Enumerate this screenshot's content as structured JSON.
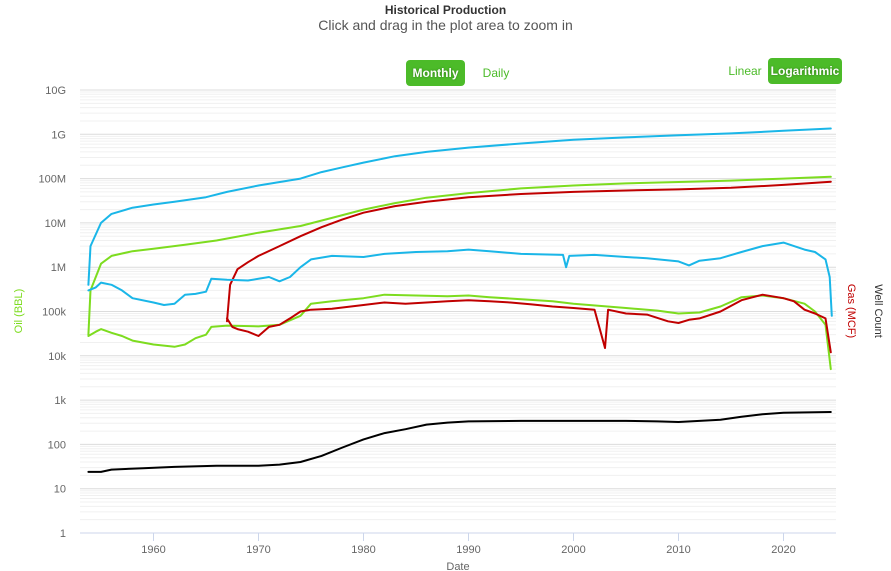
{
  "header": {
    "title": "Historical Production",
    "subtitle": "Click and drag in the plot area to zoom in"
  },
  "controls": {
    "monthly_label": "Monthly",
    "daily_label": "Daily",
    "linear_label": "Linear",
    "logarithmic_label": "Logarithmic",
    "accent_color": "#4cbb29"
  },
  "chart_data": {
    "type": "line",
    "title": "Historical Production",
    "subtitle": "Click and drag in the plot area to zoom in",
    "xlabel": "Date",
    "ylabel_left": "Oil (BBL)",
    "ylabel_right_1": "Gas (MCF)",
    "ylabel_right_2": "Well Count",
    "y_scale": "log",
    "ylim": [
      1,
      10000000000
    ],
    "xlim": [
      1953,
      2025
    ],
    "x_ticks": [
      1960,
      1970,
      1980,
      1990,
      2000,
      2010,
      2020
    ],
    "y_ticks": [
      {
        "value": 1,
        "label": "1"
      },
      {
        "value": 10,
        "label": "10"
      },
      {
        "value": 100,
        "label": "100"
      },
      {
        "value": 1000,
        "label": "1k"
      },
      {
        "value": 10000,
        "label": "10k"
      },
      {
        "value": 100000,
        "label": "100k"
      },
      {
        "value": 1000000,
        "label": "1M"
      },
      {
        "value": 10000000,
        "label": "10M"
      },
      {
        "value": 100000000,
        "label": "100M"
      },
      {
        "value": 1000000000,
        "label": "1G"
      },
      {
        "value": 10000000000,
        "label": "10G"
      }
    ],
    "grid": true,
    "series": [
      {
        "key": "cum_water",
        "color": "#1ab6e8",
        "points": [
          [
            1953.8,
            400000
          ],
          [
            1954,
            3000000
          ],
          [
            1955,
            10000000
          ],
          [
            1956,
            16000000
          ],
          [
            1958,
            22000000
          ],
          [
            1960,
            26000000
          ],
          [
            1962,
            30000000
          ],
          [
            1965,
            38000000
          ],
          [
            1967,
            50000000
          ],
          [
            1970,
            70000000
          ],
          [
            1974,
            100000000
          ],
          [
            1976,
            140000000
          ],
          [
            1978,
            180000000
          ],
          [
            1980,
            230000000
          ],
          [
            1983,
            320000000
          ],
          [
            1986,
            400000000
          ],
          [
            1990,
            500000000
          ],
          [
            1995,
            620000000
          ],
          [
            2000,
            750000000
          ],
          [
            2005,
            850000000
          ],
          [
            2010,
            950000000
          ],
          [
            2015,
            1050000000
          ],
          [
            2020,
            1200000000
          ],
          [
            2024.5,
            1350000000
          ]
        ]
      },
      {
        "key": "cum_oil",
        "color": "#7ddc1f",
        "points": [
          [
            1953.8,
            30000
          ],
          [
            1954,
            300000
          ],
          [
            1955,
            1200000
          ],
          [
            1956,
            1800000
          ],
          [
            1958,
            2300000
          ],
          [
            1960,
            2600000
          ],
          [
            1963,
            3200000
          ],
          [
            1966,
            4000000
          ],
          [
            1970,
            6000000
          ],
          [
            1974,
            8500000
          ],
          [
            1977,
            13000000
          ],
          [
            1980,
            20000000
          ],
          [
            1983,
            28000000
          ],
          [
            1986,
            37000000
          ],
          [
            1990,
            47000000
          ],
          [
            1995,
            60000000
          ],
          [
            2000,
            70000000
          ],
          [
            2005,
            78000000
          ],
          [
            2010,
            84000000
          ],
          [
            2015,
            90000000
          ],
          [
            2020,
            100000000
          ],
          [
            2024.5,
            110000000
          ]
        ]
      },
      {
        "key": "cum_gas",
        "color": "#c00000",
        "points": [
          [
            1967,
            60000
          ],
          [
            1967.3,
            400000
          ],
          [
            1968,
            900000
          ],
          [
            1969,
            1300000
          ],
          [
            1970,
            1800000
          ],
          [
            1972,
            3000000
          ],
          [
            1974,
            5000000
          ],
          [
            1976,
            8000000
          ],
          [
            1978,
            12000000
          ],
          [
            1980,
            17000000
          ],
          [
            1983,
            24000000
          ],
          [
            1986,
            30000000
          ],
          [
            1990,
            38000000
          ],
          [
            1995,
            45000000
          ],
          [
            2000,
            50000000
          ],
          [
            2005,
            54000000
          ],
          [
            2010,
            57000000
          ],
          [
            2015,
            62000000
          ],
          [
            2020,
            72000000
          ],
          [
            2024.5,
            85000000
          ]
        ]
      },
      {
        "key": "water_rate",
        "color": "#1ab6e8",
        "points": [
          [
            1953.8,
            300000
          ],
          [
            1954.5,
            350000
          ],
          [
            1955,
            450000
          ],
          [
            1956,
            400000
          ],
          [
            1957,
            300000
          ],
          [
            1958,
            200000
          ],
          [
            1960,
            160000
          ],
          [
            1961,
            140000
          ],
          [
            1962,
            150000
          ],
          [
            1963,
            240000
          ],
          [
            1964,
            250000
          ],
          [
            1965,
            280000
          ],
          [
            1965.5,
            550000
          ],
          [
            1967,
            520000
          ],
          [
            1969,
            500000
          ],
          [
            1971,
            600000
          ],
          [
            1972,
            480000
          ],
          [
            1973,
            600000
          ],
          [
            1974,
            1000000
          ],
          [
            1975,
            1500000
          ],
          [
            1977,
            1800000
          ],
          [
            1980,
            1700000
          ],
          [
            1982,
            2000000
          ],
          [
            1985,
            2200000
          ],
          [
            1988,
            2300000
          ],
          [
            1990,
            2500000
          ],
          [
            1992,
            2300000
          ],
          [
            1995,
            2000000
          ],
          [
            1999,
            1900000
          ],
          [
            1999.3,
            1000000
          ],
          [
            1999.6,
            1800000
          ],
          [
            2002,
            1900000
          ],
          [
            2005,
            1700000
          ],
          [
            2007,
            1600000
          ],
          [
            2010,
            1350000
          ],
          [
            2011,
            1100000
          ],
          [
            2012,
            1400000
          ],
          [
            2014,
            1600000
          ],
          [
            2016,
            2200000
          ],
          [
            2018,
            3000000
          ],
          [
            2020,
            3600000
          ],
          [
            2021,
            3000000
          ],
          [
            2022,
            2500000
          ],
          [
            2023,
            2200000
          ],
          [
            2024,
            1500000
          ],
          [
            2024.4,
            600000
          ],
          [
            2024.6,
            80000
          ]
        ]
      },
      {
        "key": "oil_rate",
        "color": "#7ddc1f",
        "points": [
          [
            1953.8,
            28000
          ],
          [
            1954.5,
            35000
          ],
          [
            1955,
            40000
          ],
          [
            1956,
            33000
          ],
          [
            1957,
            28000
          ],
          [
            1958,
            22000
          ],
          [
            1960,
            18000
          ],
          [
            1962,
            16000
          ],
          [
            1963,
            18000
          ],
          [
            1964,
            25000
          ],
          [
            1965,
            30000
          ],
          [
            1965.5,
            45000
          ],
          [
            1967,
            48000
          ],
          [
            1970,
            46000
          ],
          [
            1972,
            50000
          ],
          [
            1974,
            80000
          ],
          [
            1975,
            150000
          ],
          [
            1977,
            170000
          ],
          [
            1980,
            200000
          ],
          [
            1982,
            240000
          ],
          [
            1985,
            230000
          ],
          [
            1988,
            220000
          ],
          [
            1990,
            230000
          ],
          [
            1992,
            210000
          ],
          [
            1995,
            190000
          ],
          [
            1998,
            170000
          ],
          [
            2000,
            150000
          ],
          [
            2005,
            120000
          ],
          [
            2008,
            105000
          ],
          [
            2010,
            90000
          ],
          [
            2012,
            95000
          ],
          [
            2014,
            130000
          ],
          [
            2016,
            210000
          ],
          [
            2018,
            230000
          ],
          [
            2020,
            200000
          ],
          [
            2022,
            150000
          ],
          [
            2023,
            100000
          ],
          [
            2024,
            50000
          ],
          [
            2024.5,
            5000
          ]
        ]
      },
      {
        "key": "gas_rate",
        "color": "#c00000",
        "points": [
          [
            1967,
            70000
          ],
          [
            1967.5,
            45000
          ],
          [
            1968,
            40000
          ],
          [
            1969,
            35000
          ],
          [
            1970,
            28000
          ],
          [
            1971,
            45000
          ],
          [
            1972,
            50000
          ],
          [
            1973,
            70000
          ],
          [
            1974,
            100000
          ],
          [
            1975,
            110000
          ],
          [
            1977,
            115000
          ],
          [
            1980,
            140000
          ],
          [
            1982,
            160000
          ],
          [
            1984,
            150000
          ],
          [
            1986,
            160000
          ],
          [
            1988,
            170000
          ],
          [
            1990,
            180000
          ],
          [
            1992,
            170000
          ],
          [
            1994,
            160000
          ],
          [
            1996,
            145000
          ],
          [
            1998,
            130000
          ],
          [
            2000,
            120000
          ],
          [
            2002,
            110000
          ],
          [
            2003,
            15000
          ],
          [
            2003.3,
            110000
          ],
          [
            2005,
            90000
          ],
          [
            2007,
            85000
          ],
          [
            2009,
            60000
          ],
          [
            2010,
            55000
          ],
          [
            2011,
            65000
          ],
          [
            2012,
            70000
          ],
          [
            2014,
            100000
          ],
          [
            2016,
            180000
          ],
          [
            2018,
            240000
          ],
          [
            2020,
            200000
          ],
          [
            2021,
            170000
          ],
          [
            2022,
            110000
          ],
          [
            2023,
            90000
          ],
          [
            2024,
            70000
          ],
          [
            2024.5,
            12000
          ]
        ]
      },
      {
        "key": "well_count",
        "color": "#000000",
        "points": [
          [
            1953.8,
            24
          ],
          [
            1955,
            24
          ],
          [
            1956,
            27
          ],
          [
            1959,
            29
          ],
          [
            1962,
            31
          ],
          [
            1966,
            33
          ],
          [
            1970,
            33
          ],
          [
            1972,
            35
          ],
          [
            1974,
            40
          ],
          [
            1976,
            55
          ],
          [
            1978,
            85
          ],
          [
            1980,
            130
          ],
          [
            1982,
            180
          ],
          [
            1984,
            220
          ],
          [
            1986,
            280
          ],
          [
            1988,
            310
          ],
          [
            1990,
            330
          ],
          [
            1995,
            340
          ],
          [
            2000,
            340
          ],
          [
            2005,
            340
          ],
          [
            2008,
            330
          ],
          [
            2010,
            320
          ],
          [
            2012,
            340
          ],
          [
            2014,
            360
          ],
          [
            2016,
            420
          ],
          [
            2018,
            480
          ],
          [
            2020,
            520
          ],
          [
            2024.5,
            540
          ]
        ]
      }
    ]
  }
}
